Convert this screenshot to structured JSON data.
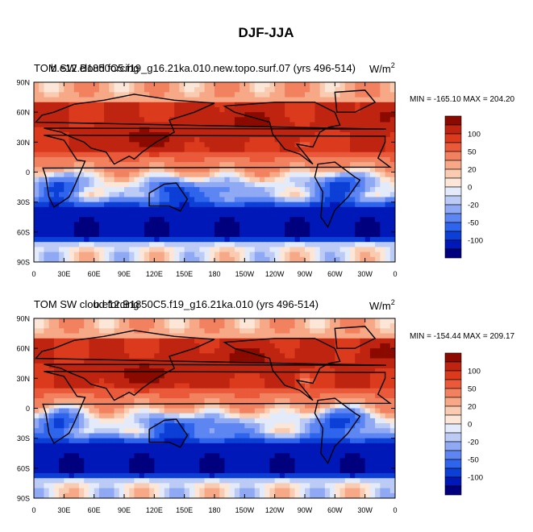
{
  "figure_title": "DJF-JJA",
  "colors": {
    "levels": [
      "#00007f",
      "#0018b8",
      "#0b3fd6",
      "#2f64ec",
      "#5e86f3",
      "#8fa9f4",
      "#bccbf5",
      "#e3ebfb",
      "#fbe6d8",
      "#f9cbb0",
      "#f7a886",
      "#f2825f",
      "#ea5a3a",
      "#db3a1c",
      "#bf2410",
      "#8b0a00"
    ]
  },
  "chart_data": [
    {
      "type": "heatmap",
      "title_left": "TOM SW cloud forcing",
      "title_overlay": "b.e12.B1850C5.f19_g16.21ka.010.new.topo.surf.07 (yrs 496-514)",
      "units": "W/m",
      "units_superscript": "2",
      "stats_text": "MIN = -165.10 MAX = 204.20",
      "min": -165.1,
      "max": 204.2,
      "y_ticks": [
        "90N",
        "60N",
        "30N",
        "0",
        "30S",
        "60S",
        "90S"
      ],
      "x_ticks": [
        "0",
        "30E",
        "60E",
        "90E",
        "120E",
        "150E",
        "180",
        "150W",
        "120W",
        "90W",
        "60W",
        "30W",
        "0"
      ],
      "colorbar_labels": [
        "100",
        "50",
        "20",
        "0",
        "-20",
        "-50",
        "-100"
      ]
    },
    {
      "type": "heatmap",
      "title_left": "TOM SW cloud forcing",
      "title_overlay": "b.e12.B1850C5.f19_g16.21ka.010 (yrs 496-514)",
      "units": "W/m",
      "units_superscript": "2",
      "stats_text": "MIN = -154.44 MAX = 209.17",
      "min": -154.44,
      "max": 209.17,
      "y_ticks": [
        "90N",
        "60N",
        "30N",
        "0",
        "30S",
        "60S",
        "90S"
      ],
      "x_ticks": [
        "0",
        "30E",
        "60E",
        "90E",
        "120E",
        "150E",
        "180",
        "150W",
        "120W",
        "90W",
        "60W",
        "30W",
        "0"
      ],
      "colorbar_labels": [
        "100",
        "50",
        "20",
        "0",
        "-20",
        "-50",
        "-100"
      ]
    }
  ]
}
